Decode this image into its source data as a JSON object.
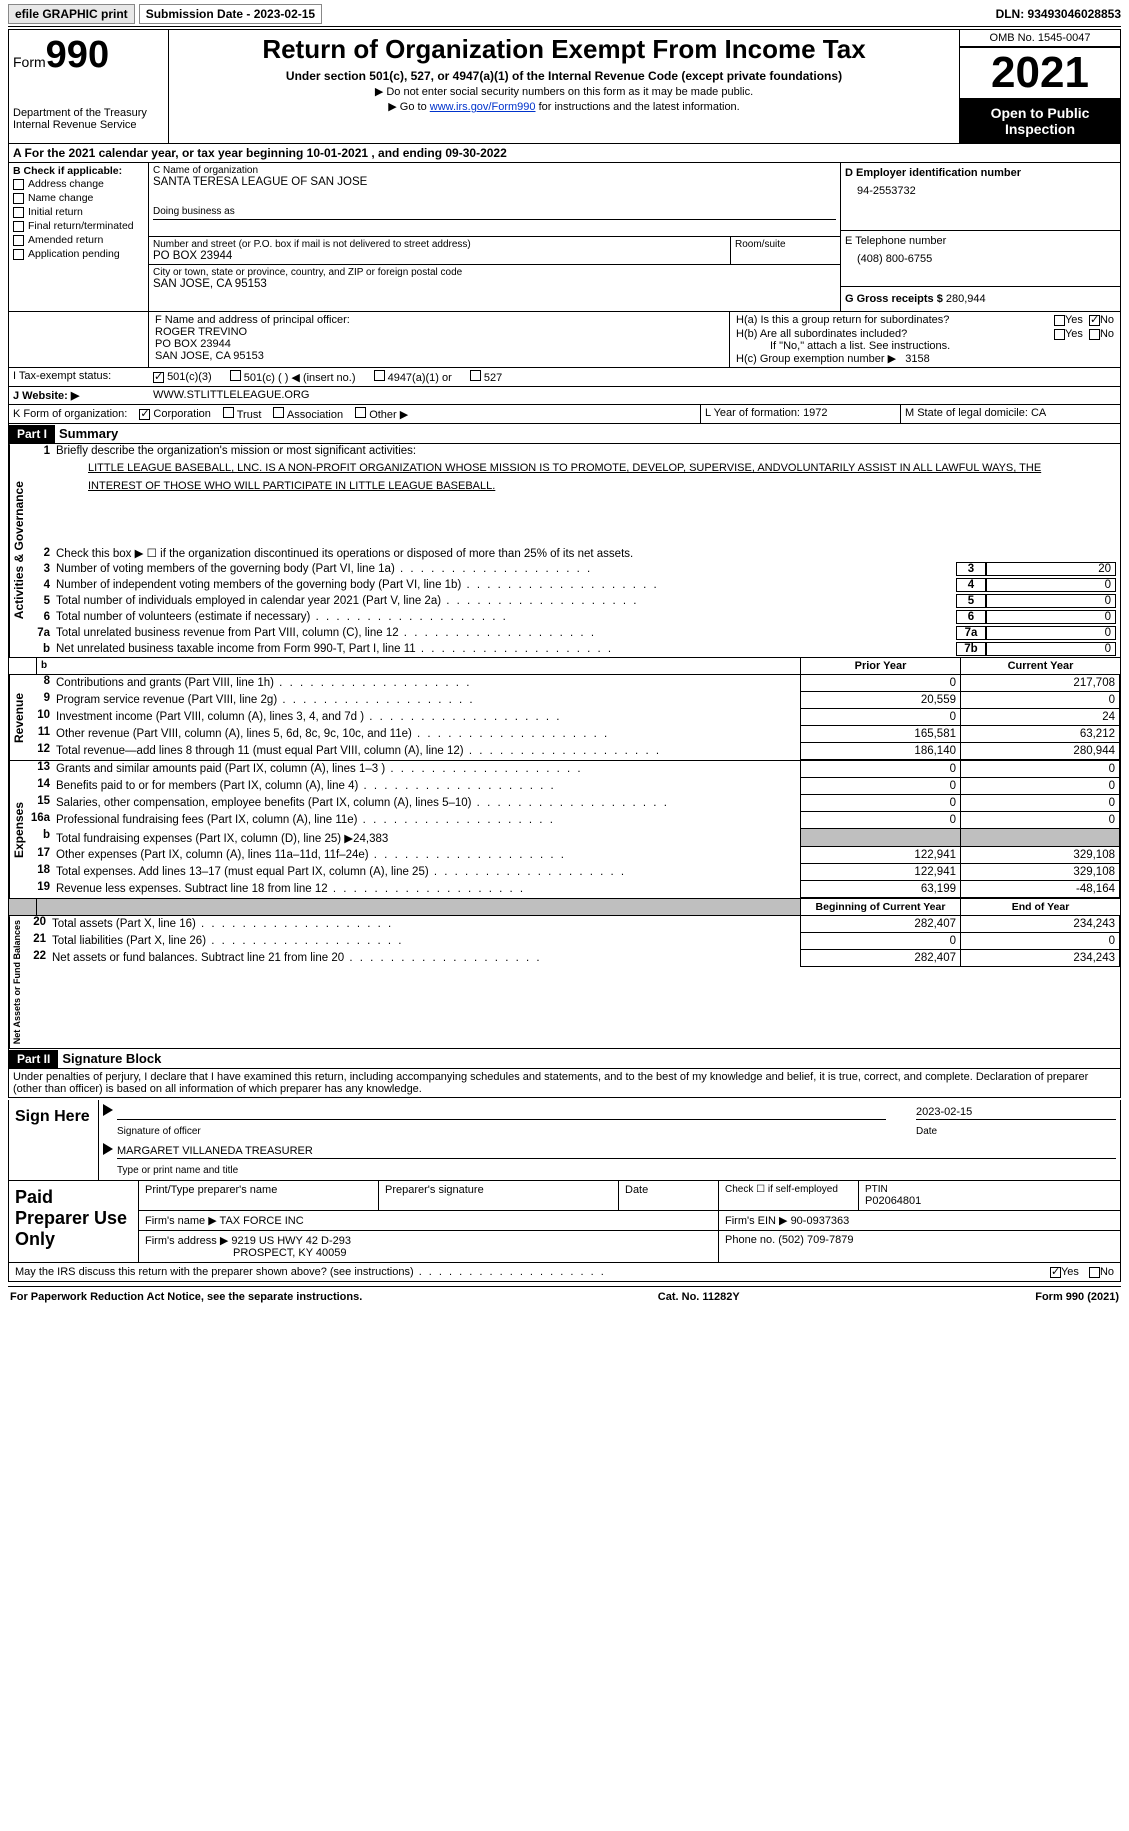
{
  "topbar": {
    "efile": "efile GRAPHIC print",
    "subdate_lbl": "Submission Date - 2023-02-15",
    "dln": "DLN: 93493046028853"
  },
  "header": {
    "form_prefix": "Form",
    "form_no": "990",
    "dept": "Department of the Treasury",
    "irs": "Internal Revenue Service",
    "title": "Return of Organization Exempt From Income Tax",
    "sub1": "Under section 501(c), 527, or 4947(a)(1) of the Internal Revenue Code (except private foundations)",
    "sub2": "▶ Do not enter social security numbers on this form as it may be made public.",
    "sub3_pre": "▶ Go to ",
    "sub3_link": "www.irs.gov/Form990",
    "sub3_post": " for instructions and the latest information.",
    "omb": "OMB No. 1545-0047",
    "year": "2021",
    "open": "Open to Public Inspection"
  },
  "A": {
    "text": "A For the 2021 calendar year, or tax year beginning 10-01-2021   , and ending 09-30-2022"
  },
  "B": {
    "title": "B Check if applicable:",
    "items": [
      "Address change",
      "Name change",
      "Initial return",
      "Final return/terminated",
      "Amended return",
      "Application pending"
    ]
  },
  "C": {
    "name_lbl": "C Name of organization",
    "name": "SANTA TERESA LEAGUE OF SAN JOSE",
    "dba_lbl": "Doing business as",
    "dba": "",
    "street_lbl": "Number and street (or P.O. box if mail is not delivered to street address)",
    "street": "PO BOX 23944",
    "room_lbl": "Room/suite",
    "city_lbl": "City or town, state or province, country, and ZIP or foreign postal code",
    "city": "SAN JOSE, CA  95153"
  },
  "D": {
    "lbl": "D Employer identification number",
    "val": "94-2553732"
  },
  "E": {
    "lbl": "E Telephone number",
    "val": "(408) 800-6755"
  },
  "G": {
    "lbl": "G Gross receipts $",
    "val": "280,944"
  },
  "F": {
    "lbl": "F  Name and address of principal officer:",
    "name": "ROGER TREVINO",
    "addr1": "PO BOX 23944",
    "addr2": "SAN JOSE, CA  95153"
  },
  "H": {
    "a": "H(a)  Is this a group return for subordinates?",
    "b": "H(b)  Are all subordinates included?",
    "b_note": "If \"No,\" attach a list. See instructions.",
    "c": "H(c)  Group exemption number ▶",
    "c_val": "3158",
    "yes": "Yes",
    "no": "No"
  },
  "I": {
    "lbl": "I   Tax-exempt status:",
    "o1": "501(c)(3)",
    "o2": "501(c) (  ) ◀ (insert no.)",
    "o3": "4947(a)(1) or",
    "o4": "527"
  },
  "J": {
    "lbl": "J   Website: ▶",
    "val": "WWW.STLITTLELEAGUE.ORG"
  },
  "K": {
    "lbl": "K Form of organization:",
    "o1": "Corporation",
    "o2": "Trust",
    "o3": "Association",
    "o4": "Other ▶"
  },
  "L": {
    "lbl": "L Year of formation:",
    "val": "1972"
  },
  "M": {
    "lbl": "M State of legal domicile:",
    "val": "CA"
  },
  "part1": {
    "bar": "Part I",
    "title": "Summary"
  },
  "summary": {
    "l1_lbl": "Briefly describe the organization's mission or most significant activities:",
    "l1_text": "LITTLE LEAGUE BASEBALL, LNC. IS A NON-PROFIT ORGANIZATION WHOSE MISSION IS TO PROMOTE, DEVELOP, SUPERVISE, ANDVOLUNTARILY ASSIST IN ALL LAWFUL WAYS, THE INTEREST OF THOSE WHO WILL PARTICIPATE IN LITTLE LEAGUE BASEBALL.",
    "l2": "Check this box ▶ ☐  if the organization discontinued its operations or disposed of more than 25% of its net assets.",
    "rows": [
      {
        "n": "3",
        "d": "Number of voting members of the governing body (Part VI, line 1a)",
        "box": "3",
        "v": "20"
      },
      {
        "n": "4",
        "d": "Number of independent voting members of the governing body (Part VI, line 1b)",
        "box": "4",
        "v": "0"
      },
      {
        "n": "5",
        "d": "Total number of individuals employed in calendar year 2021 (Part V, line 2a)",
        "box": "5",
        "v": "0"
      },
      {
        "n": "6",
        "d": "Total number of volunteers (estimate if necessary)",
        "box": "6",
        "v": "0"
      },
      {
        "n": "7a",
        "d": "Total unrelated business revenue from Part VIII, column (C), line 12",
        "box": "7a",
        "v": "0"
      },
      {
        "n": "b",
        "d": "Net unrelated business taxable income from Form 990-T, Part I, line 11",
        "box": "7b",
        "v": "0"
      }
    ],
    "side_ag": "Activities & Governance",
    "side_rev": "Revenue",
    "side_exp": "Expenses",
    "side_na": "Net Assets or Fund Balances",
    "hdr_prior": "Prior Year",
    "hdr_curr": "Current Year",
    "rev": [
      {
        "n": "8",
        "d": "Contributions and grants (Part VIII, line 1h)",
        "p": "0",
        "c": "217,708"
      },
      {
        "n": "9",
        "d": "Program service revenue (Part VIII, line 2g)",
        "p": "20,559",
        "c": "0"
      },
      {
        "n": "10",
        "d": "Investment income (Part VIII, column (A), lines 3, 4, and 7d )",
        "p": "0",
        "c": "24"
      },
      {
        "n": "11",
        "d": "Other revenue (Part VIII, column (A), lines 5, 6d, 8c, 9c, 10c, and 11e)",
        "p": "165,581",
        "c": "63,212"
      },
      {
        "n": "12",
        "d": "Total revenue—add lines 8 through 11 (must equal Part VIII, column (A), line 12)",
        "p": "186,140",
        "c": "280,944"
      }
    ],
    "exp": [
      {
        "n": "13",
        "d": "Grants and similar amounts paid (Part IX, column (A), lines 1–3 )",
        "p": "0",
        "c": "0"
      },
      {
        "n": "14",
        "d": "Benefits paid to or for members (Part IX, column (A), line 4)",
        "p": "0",
        "c": "0"
      },
      {
        "n": "15",
        "d": "Salaries, other compensation, employee benefits (Part IX, column (A), lines 5–10)",
        "p": "0",
        "c": "0"
      },
      {
        "n": "16a",
        "d": "Professional fundraising fees (Part IX, column (A), line 11e)",
        "p": "0",
        "c": "0"
      },
      {
        "n": "b",
        "d": "Total fundraising expenses (Part IX, column (D), line 25) ▶24,383",
        "p": "shade",
        "c": "shade"
      },
      {
        "n": "17",
        "d": "Other expenses (Part IX, column (A), lines 11a–11d, 11f–24e)",
        "p": "122,941",
        "c": "329,108"
      },
      {
        "n": "18",
        "d": "Total expenses. Add lines 13–17 (must equal Part IX, column (A), line 25)",
        "p": "122,941",
        "c": "329,108"
      },
      {
        "n": "19",
        "d": "Revenue less expenses. Subtract line 18 from line 12",
        "p": "63,199",
        "c": "-48,164"
      }
    ],
    "hdr_beg": "Beginning of Current Year",
    "hdr_end": "End of Year",
    "na": [
      {
        "n": "20",
        "d": "Total assets (Part X, line 16)",
        "p": "282,407",
        "c": "234,243"
      },
      {
        "n": "21",
        "d": "Total liabilities (Part X, line 26)",
        "p": "0",
        "c": "0"
      },
      {
        "n": "22",
        "d": "Net assets or fund balances. Subtract line 21 from line 20",
        "p": "282,407",
        "c": "234,243"
      }
    ]
  },
  "part2": {
    "bar": "Part II",
    "title": "Signature Block",
    "decl": "Under penalties of perjury, I declare that I have examined this return, including accompanying schedules and statements, and to the best of my knowledge and belief, it is true, correct, and complete. Declaration of preparer (other than officer) is based on all information of which preparer has any knowledge."
  },
  "sign": {
    "here": "Sign Here",
    "sig_lbl": "Signature of officer",
    "date_lbl": "Date",
    "date": "2023-02-15",
    "name": "MARGARET VILLANEDA  TREASURER",
    "name_lbl": "Type or print name and title"
  },
  "prep": {
    "title": "Paid Preparer Use Only",
    "r1": {
      "c1": "Print/Type preparer's name",
      "c2": "Preparer's signature",
      "c3": "Date",
      "c4_lbl": "Check ☐ if self-employed",
      "c5_lbl": "PTIN",
      "c5": "P02064801"
    },
    "r2": {
      "lbl": "Firm's name   ▶",
      "val": "TAX FORCE INC",
      "ein_lbl": "Firm's EIN ▶",
      "ein": "90-0937363"
    },
    "r3": {
      "lbl": "Firm's address ▶",
      "val1": "9219 US HWY 42 D-293",
      "val2": "PROSPECT, KY  40059",
      "ph_lbl": "Phone no.",
      "ph": "(502) 709-7879"
    }
  },
  "discuss": {
    "text": "May the IRS discuss this return with the preparer shown above? (see instructions)",
    "yes": "Yes",
    "no": "No"
  },
  "footer": {
    "l": "For Paperwork Reduction Act Notice, see the separate instructions.",
    "m": "Cat. No. 11282Y",
    "r": "Form 990 (2021)"
  }
}
